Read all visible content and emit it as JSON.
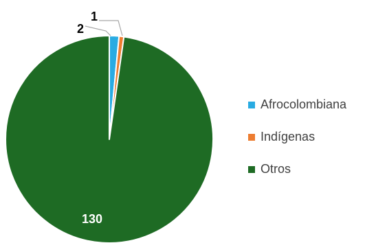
{
  "chart_data": {
    "type": "pie",
    "title": "",
    "categories": [
      "Afrocolombiana",
      "Indígenas",
      "Otros"
    ],
    "values": [
      2,
      1,
      130
    ],
    "colors": [
      "#29abe2",
      "#ed7d31",
      "#1e6b24"
    ],
    "data_labels": [
      "2",
      "1",
      "130"
    ],
    "legend": {
      "placement": "right",
      "items": [
        "Afrocolombiana",
        "Indígenas",
        "Otros"
      ]
    }
  }
}
